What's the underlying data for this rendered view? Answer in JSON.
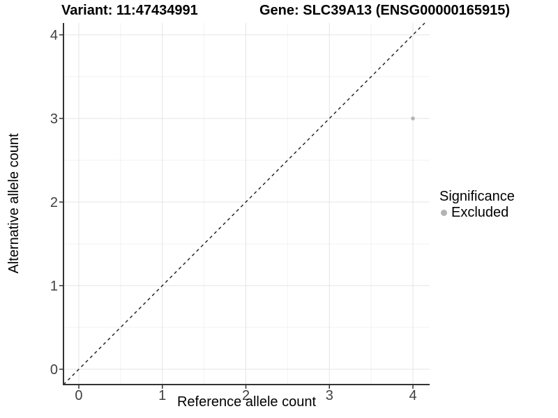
{
  "chart_data": {
    "type": "scatter",
    "title_left": "Variant: 11:47434991",
    "title_right": "Gene: SLC39A13 (ENSG00000165915)",
    "xlabel": "Reference allele count",
    "ylabel": "Alternative allele count",
    "x_ticks": [
      0,
      1,
      2,
      3,
      4
    ],
    "y_ticks": [
      0,
      1,
      2,
      3,
      4
    ],
    "xlim": [
      -0.1837,
      4.2004
    ],
    "ylim": [
      -0.1833,
      4.1417
    ],
    "grid": {
      "major": true,
      "minor": true
    },
    "reference_line": {
      "type": "identity",
      "style": "dashed"
    },
    "points": [
      {
        "x": 4,
        "y": 3,
        "significance": "Excluded"
      }
    ],
    "legend": {
      "title": "Significance",
      "position": "right",
      "entries": [
        {
          "label": "Excluded",
          "color": "#b3b3b3"
        }
      ]
    },
    "colors": {
      "background": "#ffffff",
      "point": "#b3b3b3",
      "grid_major": "#e4e4e4",
      "grid_minor": "#f2f2f2",
      "axis_line": "#333333",
      "tick_mark": "#333333",
      "tick_label": "#404040",
      "dashed_line": "#1a1a1a"
    }
  }
}
